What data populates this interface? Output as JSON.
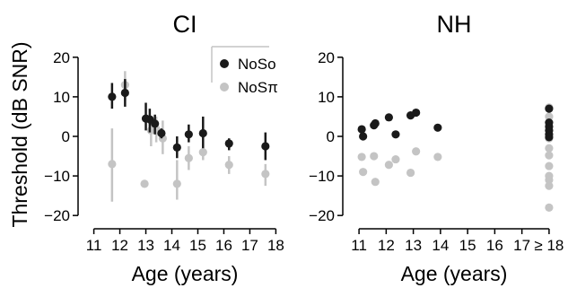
{
  "colors": {
    "NoSo": "#1a1a1a",
    "NoSpi": "#c4c4c4",
    "axis": "#000000"
  },
  "chart_data": [
    {
      "type": "scatter",
      "title": "CI",
      "xlabel": "Age (years)",
      "ylabel": "Threshold (dB SNR)",
      "xlim": [
        10.6,
        18.4
      ],
      "ylim": [
        -22,
        22
      ],
      "xticks": [
        11,
        12,
        13,
        14,
        15,
        16,
        17,
        18
      ],
      "xticklabels": [
        "11",
        "12",
        "13",
        "14",
        "15",
        "16",
        "17",
        "18"
      ],
      "yticks": [
        -20,
        -10,
        0,
        10,
        20
      ],
      "yticklabels": [
        "−20",
        "−10",
        "0",
        "10",
        "20"
      ],
      "legend": {
        "position": "top-right",
        "entries": [
          "NoSo",
          "NoSπ"
        ]
      },
      "series": [
        {
          "name": "NoSo",
          "color": "#1a1a1a",
          "points": [
            {
              "x": 11.7,
              "y": 10.0,
              "lo": 7.0,
              "hi": 13.5
            },
            {
              "x": 12.2,
              "y": 11.0,
              "lo": 7.5,
              "hi": 14.5
            },
            {
              "x": 13.0,
              "y": 4.5,
              "lo": 1.5,
              "hi": 8.5
            },
            {
              "x": 13.15,
              "y": 4.3,
              "lo": 1.0,
              "hi": 7.0
            },
            {
              "x": 13.35,
              "y": 3.2,
              "lo": 0.5,
              "hi": 5.5
            },
            {
              "x": 13.6,
              "y": 0.8,
              "lo": -0.5,
              "hi": 2.0
            },
            {
              "x": 14.2,
              "y": -2.8,
              "lo": -5.5,
              "hi": 0.0
            },
            {
              "x": 14.65,
              "y": 0.5,
              "lo": -1.5,
              "hi": 3.0
            },
            {
              "x": 15.2,
              "y": 0.8,
              "lo": -3.0,
              "hi": 5.0
            },
            {
              "x": 16.2,
              "y": -1.8,
              "lo": -3.5,
              "hi": -0.5
            },
            {
              "x": 17.6,
              "y": -2.5,
              "lo": -6.0,
              "hi": 1.0
            }
          ]
        },
        {
          "name": "NoSπ",
          "color": "#c4c4c4",
          "points": [
            {
              "x": 11.7,
              "y": -7.0,
              "lo": -16.5,
              "hi": 2.0
            },
            {
              "x": 12.2,
              "y": 13.0,
              "lo": 9.0,
              "hi": 16.5
            },
            {
              "x": 12.95,
              "y": -12.0,
              "lo": null,
              "hi": null
            },
            {
              "x": 13.2,
              "y": 1.5,
              "lo": -2.5,
              "hi": 4.5
            },
            {
              "x": 13.4,
              "y": 1.8,
              "lo": -1.5,
              "hi": 5.0
            },
            {
              "x": 13.65,
              "y": -0.5,
              "lo": -4.5,
              "hi": 4.0
            },
            {
              "x": 14.2,
              "y": -12.0,
              "lo": -16.0,
              "hi": -6.0
            },
            {
              "x": 14.65,
              "y": -5.5,
              "lo": -8.5,
              "hi": -2.5
            },
            {
              "x": 15.2,
              "y": -4.0,
              "lo": -6.0,
              "hi": -2.0
            },
            {
              "x": 16.2,
              "y": -7.2,
              "lo": -9.5,
              "hi": -5.0
            },
            {
              "x": 17.6,
              "y": -9.5,
              "lo": -12.5,
              "hi": -7.0
            }
          ]
        }
      ]
    },
    {
      "type": "scatter",
      "title": "NH",
      "xlabel": "Age (years)",
      "ylabel": "",
      "xlim": [
        10.6,
        18.4
      ],
      "ylim": [
        -22,
        22
      ],
      "xticks": [
        11,
        12,
        13,
        14,
        15,
        16,
        17,
        18
      ],
      "xticklabels": [
        "11",
        "12",
        "13",
        "14",
        "15",
        "16",
        "17",
        "≥ 18"
      ],
      "yticks": [
        -20,
        -10,
        0,
        10,
        20
      ],
      "yticklabels": [
        "−20",
        "−10",
        "0",
        "10",
        "20"
      ],
      "series": [
        {
          "name": "NoSo",
          "color": "#1a1a1a",
          "points": [
            {
              "x": 11.1,
              "y": 1.8
            },
            {
              "x": 11.15,
              "y": 0.0
            },
            {
              "x": 11.55,
              "y": 2.8
            },
            {
              "x": 11.6,
              "y": 3.3
            },
            {
              "x": 12.1,
              "y": 4.8
            },
            {
              "x": 12.35,
              "y": 0.5
            },
            {
              "x": 12.9,
              "y": 5.3
            },
            {
              "x": 13.1,
              "y": 6.0
            },
            {
              "x": 13.9,
              "y": 2.2
            },
            {
              "x": 18.0,
              "y": 3.5
            },
            {
              "x": 18.0,
              "y": 2.5
            },
            {
              "x": 18.0,
              "y": 1.5
            },
            {
              "x": 18.0,
              "y": 0.5
            },
            {
              "x": 18.0,
              "y": -0.2
            },
            {
              "x": 18.0,
              "y": 7.0
            }
          ]
        },
        {
          "name": "NoSπ",
          "color": "#c4c4c4",
          "points": [
            {
              "x": 11.1,
              "y": -5.2
            },
            {
              "x": 11.15,
              "y": -9.0
            },
            {
              "x": 11.55,
              "y": -5.0
            },
            {
              "x": 11.6,
              "y": -11.5
            },
            {
              "x": 12.1,
              "y": -7.2
            },
            {
              "x": 12.35,
              "y": -5.8
            },
            {
              "x": 12.9,
              "y": -9.2
            },
            {
              "x": 13.1,
              "y": -3.8
            },
            {
              "x": 13.9,
              "y": -5.2
            },
            {
              "x": 18.0,
              "y": 7.3
            },
            {
              "x": 18.0,
              "y": 5.0
            },
            {
              "x": 18.0,
              "y": 1.5
            },
            {
              "x": 18.0,
              "y": -0.5
            },
            {
              "x": 18.0,
              "y": -3.0
            },
            {
              "x": 18.0,
              "y": -4.8
            },
            {
              "x": 18.0,
              "y": -7.5
            },
            {
              "x": 18.0,
              "y": -10.0
            },
            {
              "x": 18.0,
              "y": -11.0
            },
            {
              "x": 18.0,
              "y": -12.5
            },
            {
              "x": 18.0,
              "y": -18.0
            }
          ]
        }
      ]
    }
  ]
}
